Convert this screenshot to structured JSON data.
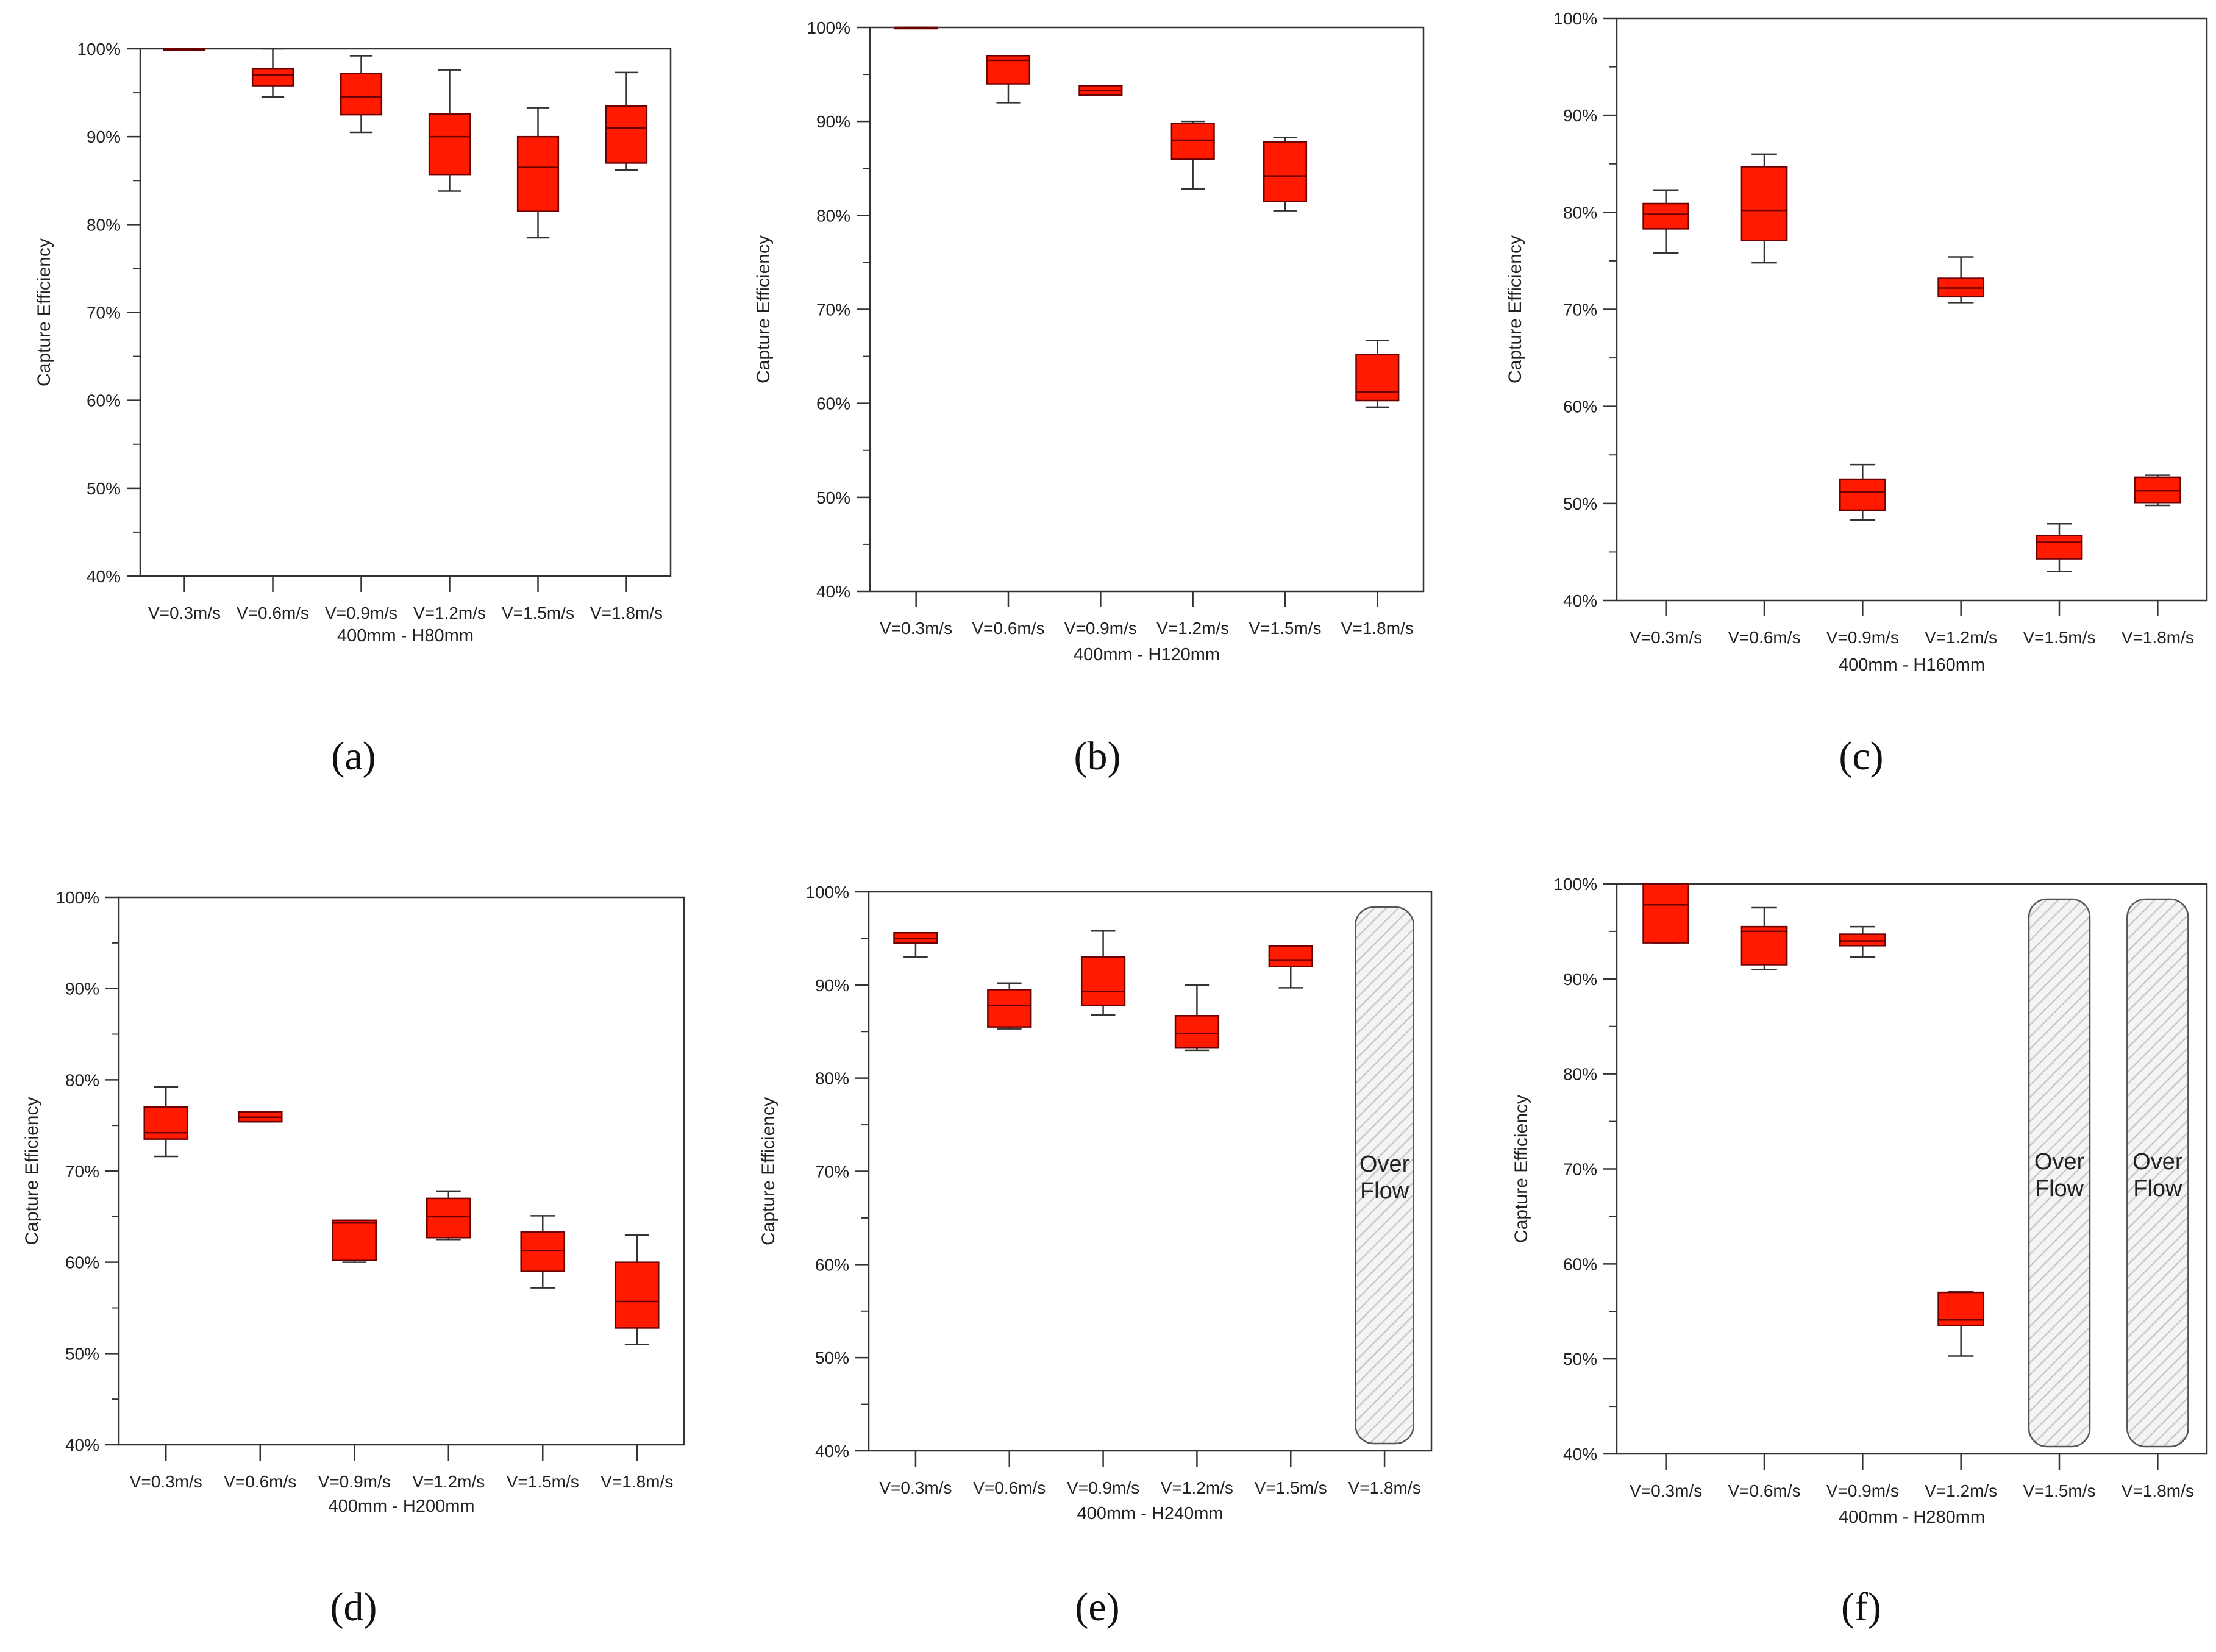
{
  "figure": {
    "y_axis_label": "Capture Efficiency",
    "colors": {
      "box_fill": "#ff1a00",
      "box_stroke": "#6b0000",
      "axis": "#333333",
      "text": "#222222",
      "overflow_fill": "#f3f3f3",
      "overflow_stroke": "#555555"
    }
  },
  "chart_data": [
    {
      "type": "boxplot",
      "panel_label": "(a)",
      "xlabel": "400mm - H80mm",
      "ylabel": "Capture Efficiency",
      "ylim": [
        40,
        100
      ],
      "yticks": [
        "40%",
        "50%",
        "60%",
        "70%",
        "80%",
        "90%",
        "100%"
      ],
      "categories": [
        "V=0.3m/s",
        "V=0.6m/s",
        "V=0.9m/s",
        "V=1.2m/s",
        "V=1.5m/s",
        "V=1.8m/s"
      ],
      "boxes": [
        {
          "min": 100,
          "q1": 100,
          "median": 100,
          "q3": 100,
          "max": 100
        },
        {
          "min": 94.5,
          "q1": 95.8,
          "median": 97,
          "q3": 97.7,
          "max": 100
        },
        {
          "min": 90.5,
          "q1": 92.5,
          "median": 94.5,
          "q3": 97.2,
          "max": 99.2
        },
        {
          "min": 83.8,
          "q1": 85.7,
          "median": 90,
          "q3": 92.6,
          "max": 97.6
        },
        {
          "min": 78.5,
          "q1": 81.5,
          "median": 86.5,
          "q3": 90,
          "max": 93.3
        },
        {
          "min": 86.2,
          "q1": 87,
          "median": 91,
          "q3": 93.5,
          "max": 97.3
        }
      ],
      "overflow": []
    },
    {
      "type": "boxplot",
      "panel_label": "(b)",
      "xlabel": "400mm - H120mm",
      "ylabel": "Capture Efficiency",
      "ylim": [
        40,
        100
      ],
      "yticks": [
        "40%",
        "50%",
        "60%",
        "70%",
        "80%",
        "90%",
        "100%"
      ],
      "categories": [
        "V=0.3m/s",
        "V=0.6m/s",
        "V=0.9m/s",
        "V=1.2m/s",
        "V=1.5m/s",
        "V=1.8m/s"
      ],
      "boxes": [
        {
          "min": 100,
          "q1": 100,
          "median": 100,
          "q3": 100,
          "max": 100
        },
        {
          "min": 92,
          "q1": 94,
          "median": 96.5,
          "q3": 97,
          "max": 97
        },
        {
          "min": 92.8,
          "q1": 92.8,
          "median": 93.3,
          "q3": 93.8,
          "max": 93.8
        },
        {
          "min": 82.8,
          "q1": 86,
          "median": 88,
          "q3": 89.8,
          "max": 90
        },
        {
          "min": 80.5,
          "q1": 81.5,
          "median": 84.2,
          "q3": 87.8,
          "max": 88.3
        },
        {
          "min": 59.6,
          "q1": 60.3,
          "median": 61.2,
          "q3": 65.2,
          "max": 66.7
        }
      ],
      "overflow": []
    },
    {
      "type": "boxplot",
      "panel_label": "(c)",
      "xlabel": "400mm - H160mm",
      "ylabel": "Capture Efficiency",
      "ylim": [
        40,
        100
      ],
      "yticks": [
        "40%",
        "50%",
        "60%",
        "70%",
        "80%",
        "90%",
        "100%"
      ],
      "categories": [
        "V=0.3m/s",
        "V=0.6m/s",
        "V=0.9m/s",
        "V=1.2m/s",
        "V=1.5m/s",
        "V=1.8m/s"
      ],
      "boxes": [
        {
          "min": 75.8,
          "q1": 78.3,
          "median": 79.8,
          "q3": 80.9,
          "max": 82.3
        },
        {
          "min": 74.8,
          "q1": 77.1,
          "median": 80.2,
          "q3": 84.7,
          "max": 86
        },
        {
          "min": 48.3,
          "q1": 49.3,
          "median": 51.2,
          "q3": 52.5,
          "max": 54
        },
        {
          "min": 70.7,
          "q1": 71.3,
          "median": 72.2,
          "q3": 73.2,
          "max": 75.4
        },
        {
          "min": 43,
          "q1": 44.3,
          "median": 46,
          "q3": 46.7,
          "max": 47.9
        },
        {
          "min": 49.8,
          "q1": 50.1,
          "median": 51.3,
          "q3": 52.7,
          "max": 52.9
        }
      ],
      "overflow": []
    },
    {
      "type": "boxplot",
      "panel_label": "(d)",
      "xlabel": "400mm - H200mm",
      "ylabel": "Capture Efficiency",
      "ylim": [
        40,
        100
      ],
      "yticks": [
        "40%",
        "50%",
        "60%",
        "70%",
        "80%",
        "90%",
        "100%"
      ],
      "categories": [
        "V=0.3m/s",
        "V=0.6m/s",
        "V=0.9m/s",
        "V=1.2m/s",
        "V=1.5m/s",
        "V=1.8m/s"
      ],
      "boxes": [
        {
          "min": 71.6,
          "q1": 73.5,
          "median": 74.2,
          "q3": 77,
          "max": 79.2
        },
        {
          "min": 75.4,
          "q1": 75.4,
          "median": 75.9,
          "q3": 76.5,
          "max": 76.5
        },
        {
          "min": 60,
          "q1": 60.2,
          "median": 64.3,
          "q3": 64.6,
          "max": 64.6
        },
        {
          "min": 62.5,
          "q1": 62.7,
          "median": 65,
          "q3": 67,
          "max": 67.8
        },
        {
          "min": 57.2,
          "q1": 59,
          "median": 61.3,
          "q3": 63.3,
          "max": 65.1
        },
        {
          "min": 51,
          "q1": 52.8,
          "median": 55.7,
          "q3": 60,
          "max": 63
        }
      ],
      "overflow": []
    },
    {
      "type": "boxplot",
      "panel_label": "(e)",
      "xlabel": "400mm - H240mm",
      "ylabel": "Capture Efficiency",
      "ylim": [
        40,
        100
      ],
      "yticks": [
        "40%",
        "50%",
        "60%",
        "70%",
        "80%",
        "90%",
        "100%"
      ],
      "categories": [
        "V=0.3m/s",
        "V=0.6m/s",
        "V=0.9m/s",
        "V=1.2m/s",
        "V=1.5m/s",
        "V=1.8m/s"
      ],
      "boxes": [
        {
          "min": 93,
          "q1": 94.5,
          "median": 95,
          "q3": 95.6,
          "max": 95.6
        },
        {
          "min": 85.3,
          "q1": 85.5,
          "median": 87.8,
          "q3": 89.5,
          "max": 90.2
        },
        {
          "min": 86.8,
          "q1": 87.8,
          "median": 89.3,
          "q3": 93,
          "max": 95.8
        },
        {
          "min": 83,
          "q1": 83.3,
          "median": 84.8,
          "q3": 86.7,
          "max": 90
        },
        {
          "min": 89.7,
          "q1": 92,
          "median": 92.7,
          "q3": 94.2,
          "max": 94.2
        },
        null
      ],
      "overflow": [
        {
          "category_index": 5,
          "label_line1": "Over",
          "label_line2": "Flow"
        }
      ]
    },
    {
      "type": "boxplot",
      "panel_label": "(f)",
      "xlabel": "400mm - H280mm",
      "ylabel": "Capture Efficiency",
      "ylim": [
        40,
        100
      ],
      "yticks": [
        "40%",
        "50%",
        "60%",
        "70%",
        "80%",
        "90%",
        "100%"
      ],
      "categories": [
        "V=0.3m/s",
        "V=0.6m/s",
        "V=0.9m/s",
        "V=1.2m/s",
        "V=1.5m/s",
        "V=1.8m/s"
      ],
      "boxes": [
        {
          "min": 93.8,
          "q1": 93.8,
          "median": 97.8,
          "q3": 100,
          "max": 100
        },
        {
          "min": 91,
          "q1": 91.5,
          "median": 95,
          "q3": 95.5,
          "max": 97.5
        },
        {
          "min": 92.3,
          "q1": 93.5,
          "median": 94,
          "q3": 94.7,
          "max": 95.5
        },
        {
          "min": 50.3,
          "q1": 53.5,
          "median": 54.1,
          "q3": 57,
          "max": 57.1
        },
        null,
        null
      ],
      "overflow": [
        {
          "category_index": 4,
          "label_line1": "Over",
          "label_line2": "Flow"
        },
        {
          "category_index": 5,
          "label_line1": "Over",
          "label_line2": "Flow"
        }
      ]
    }
  ]
}
